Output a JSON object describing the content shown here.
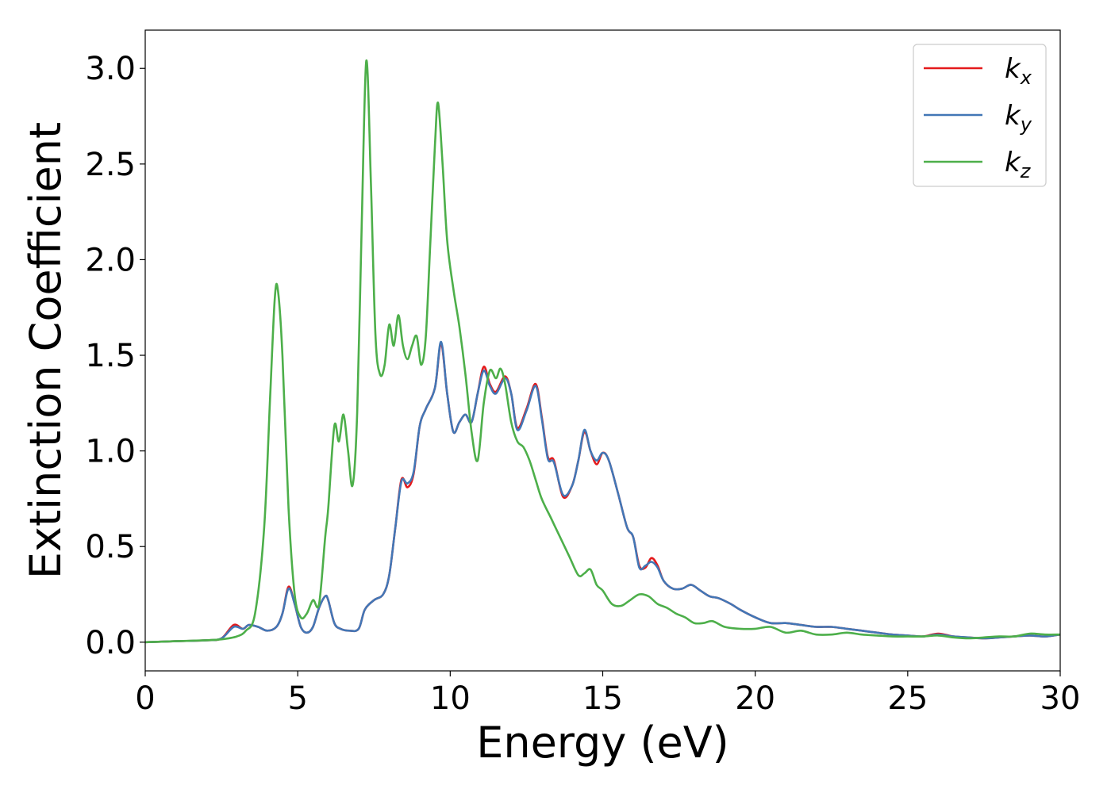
{
  "chart_data": {
    "type": "line",
    "title": "",
    "xlabel": "Energy (eV)",
    "ylabel": "Extinction Coefficient",
    "xlim": [
      0,
      30
    ],
    "ylim": [
      -0.15,
      3.2
    ],
    "xticks": [
      0,
      5,
      10,
      15,
      20,
      25,
      30
    ],
    "xtick_labels": [
      "0",
      "5",
      "10",
      "15",
      "20",
      "25",
      "30"
    ],
    "yticks": [
      0.0,
      0.5,
      1.0,
      1.5,
      2.0,
      2.5,
      3.0
    ],
    "ytick_labels": [
      "0.0",
      "0.5",
      "1.0",
      "1.5",
      "2.0",
      "2.5",
      "3.0"
    ],
    "grid": false,
    "legend_position": "top-right",
    "series": [
      {
        "name": "k_x",
        "legend_base": "k",
        "legend_sub": "x",
        "color": "#e41a1c",
        "x": [
          0,
          1,
          2,
          2.5,
          2.9,
          3.2,
          3.4,
          3.7,
          4.0,
          4.3,
          4.5,
          4.7,
          4.9,
          5.1,
          5.3,
          5.5,
          5.7,
          5.9,
          6.0,
          6.2,
          6.4,
          6.7,
          7.0,
          7.2,
          7.5,
          7.8,
          8.0,
          8.2,
          8.4,
          8.6,
          8.8,
          9.0,
          9.2,
          9.5,
          9.7,
          9.9,
          10.1,
          10.3,
          10.5,
          10.7,
          10.9,
          11.1,
          11.3,
          11.5,
          11.8,
          12.0,
          12.2,
          12.5,
          12.8,
          13.0,
          13.2,
          13.4,
          13.7,
          14.0,
          14.2,
          14.4,
          14.6,
          14.8,
          15.0,
          15.2,
          15.5,
          15.8,
          16.0,
          16.2,
          16.4,
          16.6,
          16.8,
          17.0,
          17.3,
          17.6,
          17.9,
          18.2,
          18.5,
          18.8,
          19.2,
          19.5,
          20.0,
          20.5,
          21.0,
          21.5,
          22.0,
          22.5,
          23.0,
          23.5,
          24.0,
          24.5,
          25.0,
          25.5,
          26.0,
          26.5,
          27.0,
          27.5,
          28.0,
          28.5,
          29.0,
          29.5,
          30.0
        ],
        "values": [
          0.0,
          0.005,
          0.01,
          0.02,
          0.09,
          0.07,
          0.09,
          0.08,
          0.06,
          0.08,
          0.15,
          0.29,
          0.2,
          0.08,
          0.05,
          0.08,
          0.18,
          0.24,
          0.22,
          0.1,
          0.07,
          0.06,
          0.07,
          0.17,
          0.22,
          0.25,
          0.35,
          0.6,
          0.85,
          0.81,
          0.88,
          1.13,
          1.22,
          1.33,
          1.56,
          1.3,
          1.1,
          1.15,
          1.19,
          1.15,
          1.3,
          1.44,
          1.35,
          1.31,
          1.39,
          1.3,
          1.12,
          1.22,
          1.35,
          1.18,
          0.97,
          0.95,
          0.76,
          0.82,
          0.95,
          1.1,
          1.0,
          0.93,
          0.99,
          0.95,
          0.78,
          0.6,
          0.55,
          0.4,
          0.39,
          0.44,
          0.4,
          0.32,
          0.28,
          0.28,
          0.3,
          0.27,
          0.24,
          0.23,
          0.2,
          0.17,
          0.13,
          0.1,
          0.1,
          0.09,
          0.08,
          0.08,
          0.07,
          0.06,
          0.05,
          0.04,
          0.035,
          0.03,
          0.045,
          0.03,
          0.025,
          0.02,
          0.025,
          0.03,
          0.035,
          0.03,
          0.04
        ]
      },
      {
        "name": "k_y",
        "legend_base": "k",
        "legend_sub": "y",
        "color": "#4277b6",
        "x": [
          0,
          1,
          2,
          2.5,
          2.9,
          3.2,
          3.4,
          3.7,
          4.0,
          4.3,
          4.5,
          4.7,
          4.9,
          5.1,
          5.3,
          5.5,
          5.7,
          5.9,
          6.0,
          6.2,
          6.4,
          6.7,
          7.0,
          7.2,
          7.5,
          7.8,
          8.0,
          8.2,
          8.4,
          8.6,
          8.8,
          9.0,
          9.2,
          9.5,
          9.7,
          9.9,
          10.1,
          10.3,
          10.5,
          10.7,
          10.9,
          11.1,
          11.3,
          11.5,
          11.8,
          12.0,
          12.2,
          12.5,
          12.8,
          13.0,
          13.2,
          13.4,
          13.7,
          14.0,
          14.2,
          14.4,
          14.6,
          14.8,
          15.0,
          15.2,
          15.5,
          15.8,
          16.0,
          16.2,
          16.4,
          16.6,
          16.8,
          17.0,
          17.3,
          17.6,
          17.9,
          18.2,
          18.5,
          18.8,
          19.2,
          19.5,
          20.0,
          20.5,
          21.0,
          21.5,
          22.0,
          22.5,
          23.0,
          23.5,
          24.0,
          24.5,
          25.0,
          25.5,
          26.0,
          26.5,
          27.0,
          27.5,
          28.0,
          28.5,
          29.0,
          29.5,
          30.0
        ],
        "values": [
          0.0,
          0.005,
          0.01,
          0.02,
          0.08,
          0.07,
          0.09,
          0.08,
          0.06,
          0.08,
          0.15,
          0.28,
          0.2,
          0.08,
          0.05,
          0.08,
          0.18,
          0.24,
          0.22,
          0.1,
          0.07,
          0.06,
          0.07,
          0.17,
          0.22,
          0.25,
          0.35,
          0.6,
          0.84,
          0.83,
          0.89,
          1.13,
          1.22,
          1.33,
          1.57,
          1.3,
          1.1,
          1.15,
          1.19,
          1.15,
          1.3,
          1.42,
          1.34,
          1.3,
          1.38,
          1.3,
          1.11,
          1.21,
          1.34,
          1.17,
          0.96,
          0.94,
          0.77,
          0.82,
          0.95,
          1.11,
          1.0,
          0.95,
          0.99,
          0.95,
          0.78,
          0.6,
          0.55,
          0.39,
          0.4,
          0.42,
          0.39,
          0.32,
          0.28,
          0.28,
          0.3,
          0.27,
          0.24,
          0.23,
          0.2,
          0.17,
          0.13,
          0.1,
          0.1,
          0.09,
          0.08,
          0.08,
          0.07,
          0.06,
          0.05,
          0.04,
          0.035,
          0.03,
          0.04,
          0.03,
          0.025,
          0.02,
          0.025,
          0.03,
          0.035,
          0.03,
          0.04
        ]
      },
      {
        "name": "k_z",
        "legend_base": "k",
        "legend_sub": "z",
        "color": "#4daf4a",
        "x": [
          0,
          1,
          2,
          2.5,
          3.0,
          3.3,
          3.6,
          3.9,
          4.1,
          4.25,
          4.35,
          4.5,
          4.7,
          4.9,
          5.1,
          5.3,
          5.5,
          5.7,
          5.9,
          6.0,
          6.2,
          6.35,
          6.5,
          6.65,
          6.8,
          6.95,
          7.1,
          7.25,
          7.4,
          7.55,
          7.7,
          7.85,
          8.0,
          8.15,
          8.3,
          8.45,
          8.6,
          8.75,
          8.9,
          9.05,
          9.2,
          9.35,
          9.5,
          9.6,
          9.75,
          9.9,
          10.1,
          10.3,
          10.5,
          10.7,
          10.9,
          11.1,
          11.3,
          11.5,
          11.65,
          11.8,
          12.0,
          12.2,
          12.4,
          12.6,
          12.8,
          13.0,
          13.3,
          13.6,
          13.9,
          14.2,
          14.4,
          14.6,
          14.8,
          15.0,
          15.3,
          15.6,
          15.9,
          16.2,
          16.5,
          16.8,
          17.1,
          17.4,
          17.7,
          18.0,
          18.3,
          18.6,
          19.0,
          19.5,
          20.0,
          20.5,
          21.0,
          21.5,
          22.0,
          22.5,
          23.0,
          23.5,
          24.0,
          24.5,
          25.0,
          25.5,
          26.0,
          26.5,
          27.0,
          27.5,
          28.0,
          28.5,
          29.0,
          29.5,
          30.0
        ],
        "values": [
          0.0,
          0.005,
          0.01,
          0.015,
          0.03,
          0.06,
          0.15,
          0.6,
          1.3,
          1.8,
          1.84,
          1.5,
          0.7,
          0.25,
          0.13,
          0.15,
          0.22,
          0.2,
          0.55,
          0.7,
          1.13,
          1.05,
          1.19,
          1.0,
          0.82,
          1.2,
          2.2,
          3.04,
          2.4,
          1.6,
          1.4,
          1.45,
          1.66,
          1.55,
          1.71,
          1.55,
          1.48,
          1.55,
          1.6,
          1.45,
          1.6,
          2.1,
          2.6,
          2.82,
          2.5,
          2.1,
          1.85,
          1.65,
          1.4,
          1.1,
          0.95,
          1.25,
          1.42,
          1.38,
          1.43,
          1.35,
          1.15,
          1.05,
          1.02,
          0.95,
          0.85,
          0.75,
          0.65,
          0.55,
          0.45,
          0.35,
          0.36,
          0.38,
          0.3,
          0.27,
          0.2,
          0.19,
          0.22,
          0.25,
          0.24,
          0.2,
          0.18,
          0.15,
          0.13,
          0.1,
          0.1,
          0.11,
          0.08,
          0.07,
          0.07,
          0.08,
          0.05,
          0.06,
          0.04,
          0.04,
          0.05,
          0.04,
          0.035,
          0.03,
          0.03,
          0.03,
          0.035,
          0.025,
          0.02,
          0.025,
          0.03,
          0.03,
          0.045,
          0.04,
          0.04
        ]
      }
    ]
  }
}
